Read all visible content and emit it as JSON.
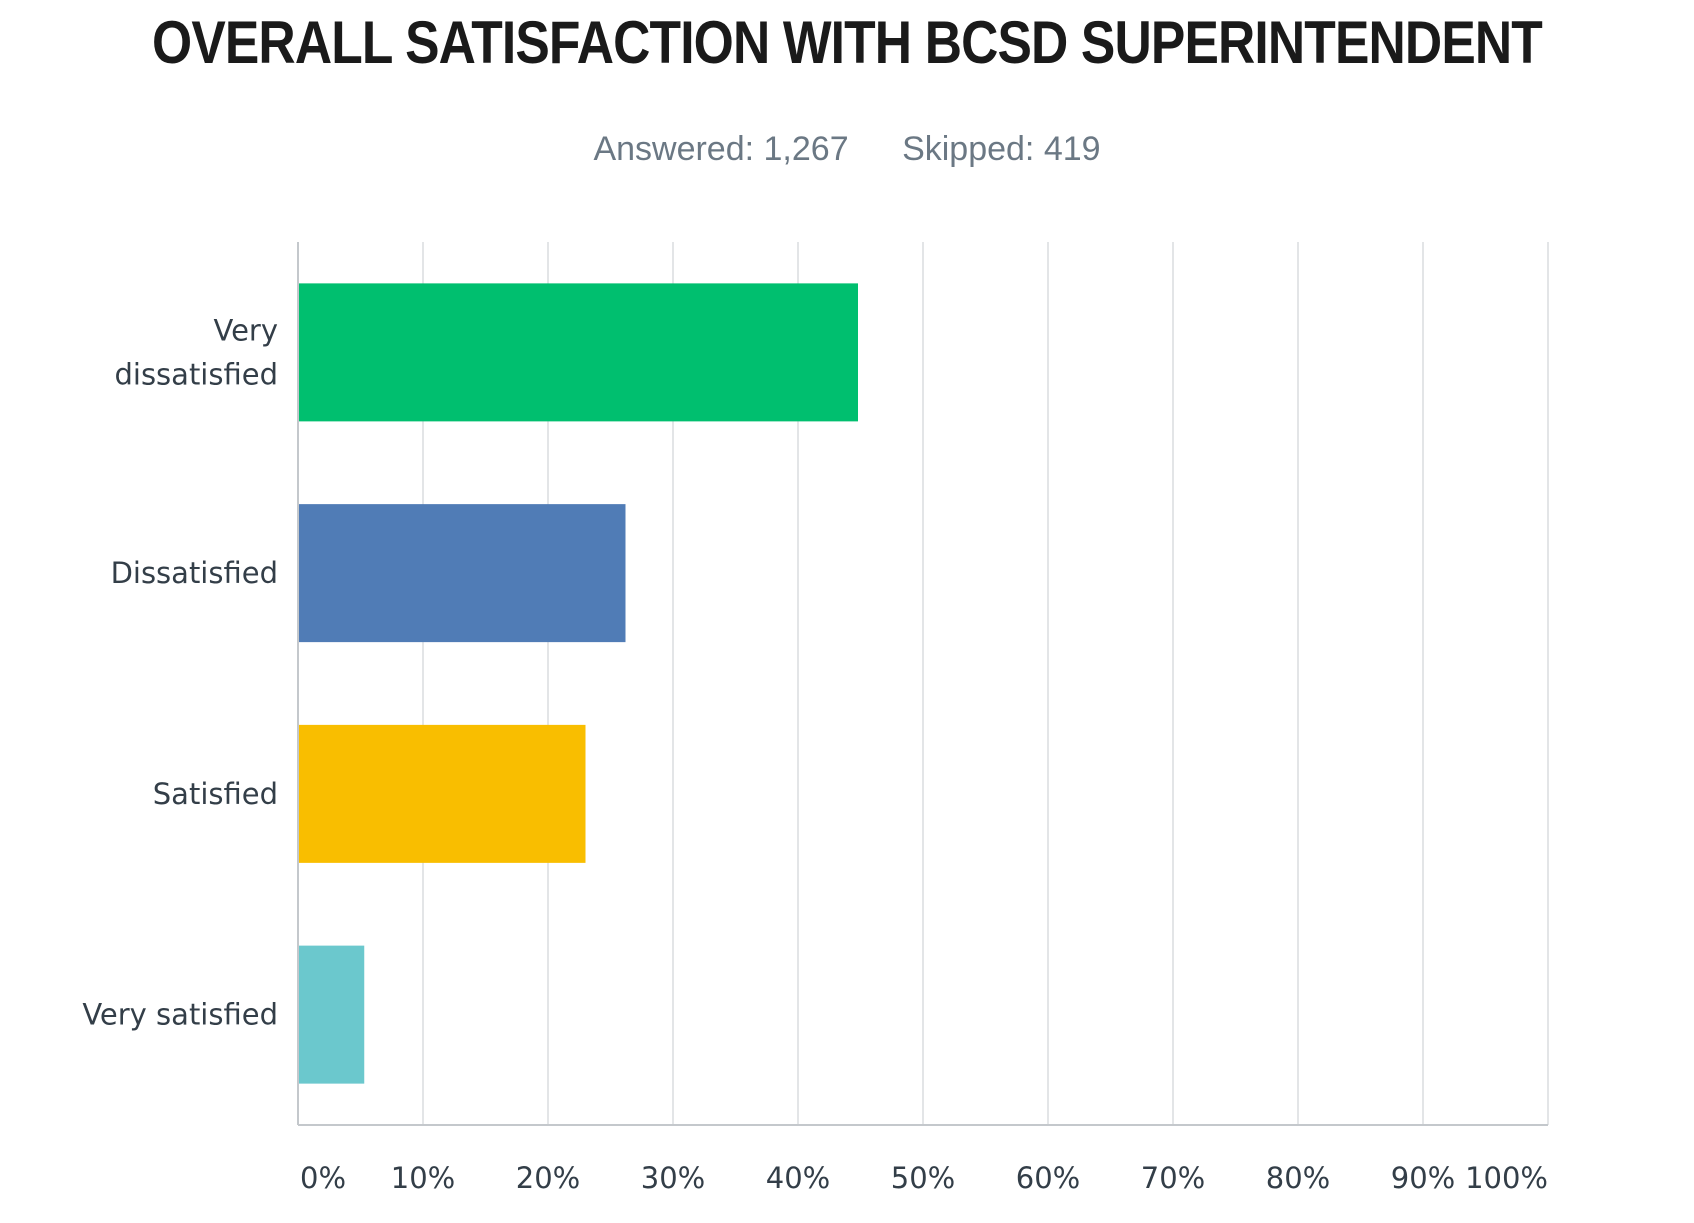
{
  "chart_data": {
    "type": "bar",
    "orientation": "horizontal",
    "title": "OVERALL SATISFACTION WITH BCSD SUPERINTENDENT",
    "answered_text": "Answered: 1,267",
    "skipped_text": "Skipped: 419",
    "categories": [
      [
        "Very",
        "dissatisfied"
      ],
      [
        "Dissatisfied"
      ],
      [
        "Satisfied"
      ],
      [
        "Very satisfied"
      ]
    ],
    "values": [
      44.8,
      26.2,
      23.0,
      5.3
    ],
    "colors": [
      "#00bf6f",
      "#507cb6",
      "#f9be00",
      "#6bc8cd"
    ],
    "xlim": [
      0,
      100
    ],
    "xticks": [
      0,
      10,
      20,
      30,
      40,
      50,
      60,
      70,
      80,
      90,
      100
    ],
    "xtick_labels": [
      "0%",
      "10%",
      "20%",
      "30%",
      "40%",
      "50%",
      "60%",
      "70%",
      "80%",
      "90%",
      "100%"
    ],
    "grid": true
  }
}
